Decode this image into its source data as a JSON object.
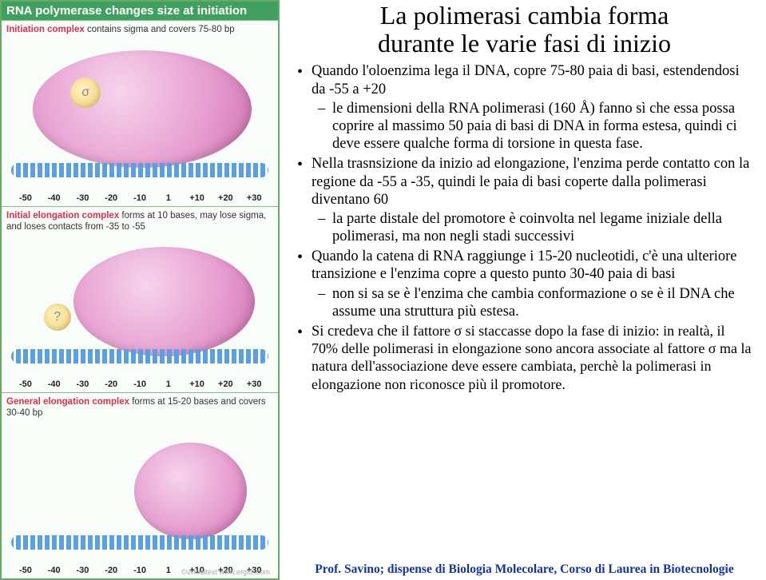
{
  "left": {
    "banner": "RNA polymerase changes size at initiation",
    "ruler_ticks": [
      "-50",
      "-40",
      "-30",
      "-20",
      "-10",
      "1",
      "+10",
      "+20",
      "+30"
    ],
    "virtualtext": "©virtualtext  www.ergito.com",
    "panels": [
      {
        "caption_hl": "Initiation complex",
        "caption_rest": " contains sigma and covers 75-80 bp",
        "bubble": {
          "leftPct": 10,
          "topPct": 8,
          "wPct": 82,
          "hPct": 70
        },
        "sigma": {
          "leftPct": 24,
          "topPct": 24,
          "sizePx": 38,
          "text": "σ"
        },
        "trackBottomPct": 28
      },
      {
        "caption_hl": "Initial elongation complex",
        "caption_rest": " forms at 10 bases, may lose sigma, and loses contacts from -35 to -55",
        "bubble": {
          "leftPct": 25,
          "topPct": 8,
          "wPct": 68,
          "hPct": 70
        },
        "sigma": {
          "leftPct": 14,
          "topPct": 44,
          "sizePx": 34,
          "text": "?"
        },
        "trackBottomPct": 28
      },
      {
        "caption_hl": "General elongation complex",
        "caption_rest": " forms at 15-20 bases and covers 30-40 bp",
        "bubble": {
          "leftPct": 48,
          "topPct": 14,
          "wPct": 42,
          "hPct": 62
        },
        "sigma": null,
        "trackBottomPct": 28
      }
    ]
  },
  "right": {
    "title_l1": "La polimerasi cambia forma",
    "title_l2": "durante le varie fasi di inizio",
    "b1": "Quando l'oloenzima lega il DNA, copre 75-80 paia di basi, estendendosi da -55 a +20",
    "b1s1": "le dimensioni della RNA polimerasi (160 Å) fanno sì che essa possa coprire al massimo 50 paia di basi di DNA in forma estesa, quindi ci deve essere qualche forma di torsione in questa fase.",
    "b2": "Nella trasnsizione da inizio ad elongazione, l'enzima perde contatto con la regione da -55 a -35, quindi le paia di basi coperte dalla polimerasi diventano 60",
    "b2s1": "la parte distale del promotore è coinvolta nel legame iniziale della polimerasi, ma non negli stadi successivi",
    "b3": "Quando la catena di RNA raggiunge i 15-20 nucleotidi, c'è una ulteriore transizione e l'enzima copre a questo punto 30-40 paia di basi",
    "b3s1": "non si sa se è l'enzima che cambia conformazione o se è il DNA che assume una struttura più estesa.",
    "b4_a": "Si credeva che ",
    "b4_b": "il fattore σ si staccasse dopo la fase di inizio: in realtà, il 70% delle polimerasi in elongazione sono ancora associate al fattore σ ma la natura dell'associazione deve essere cambiata, perchè la polimerasi in elongazione non riconosce più il promotore.",
    "footer": "Prof. Savino; dispense di Biologia Molecolare, Corso di Laurea in Biotecnologie"
  }
}
